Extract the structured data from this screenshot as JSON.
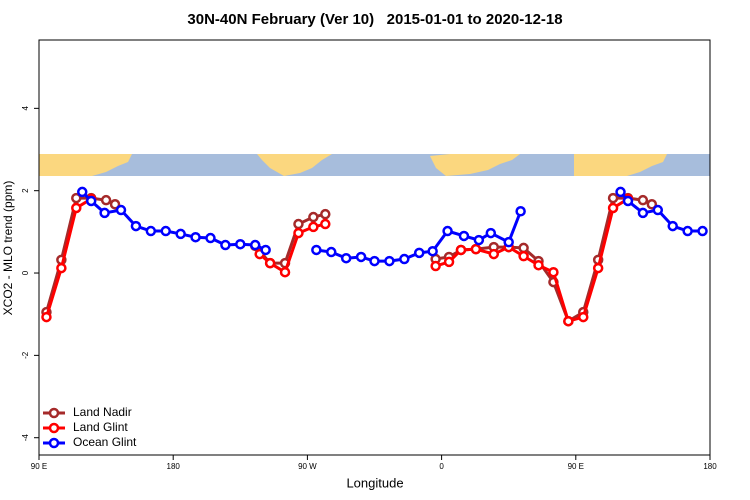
{
  "chart_data": {
    "type": "line",
    "title": "30N-40N February (Ver 10)   2015-01-01 to 2020-12-18",
    "xlabel": "Longitude",
    "ylabel": "XCO2 - MLO trend (ppm)",
    "xlim": [
      90,
      540
    ],
    "ylim": [
      -4.42,
      5.66
    ],
    "xticks": [
      {
        "value": 90,
        "label": "90 E"
      },
      180,
      {
        "value": 270,
        "label": "90 W"
      },
      {
        "value": 360,
        "label": "0"
      },
      {
        "value": 450,
        "label": "90 E"
      },
      {
        "value": 540,
        "label": "180"
      }
    ],
    "yticks": [
      -4,
      -2,
      0,
      2,
      4
    ],
    "legend": "bottom-left",
    "series": [
      {
        "name": "Land Nadir",
        "color": "#a52a2a",
        "x": [
          95,
          105,
          115,
          125,
          135,
          141,
          null,
          235,
          245,
          255,
          264,
          274,
          282,
          null,
          356,
          365,
          373,
          383,
          395,
          405,
          415,
          425,
          435,
          445,
          455,
          465,
          475,
          485,
          495,
          501
        ],
        "values": [
          -0.95,
          0.32,
          1.82,
          1.82,
          1.77,
          1.67,
          null,
          0.66,
          0.24,
          0.24,
          1.19,
          1.36,
          1.43,
          null,
          0.34,
          0.39,
          0.56,
          0.58,
          0.63,
          0.63,
          0.61,
          0.29,
          -0.22,
          -1.17,
          -0.95,
          0.32,
          1.82,
          1.82,
          1.77,
          1.67
        ]
      },
      {
        "name": "Land Glint",
        "color": "#ff0000",
        "x": [
          95,
          105,
          115,
          125,
          null,
          238,
          245,
          255,
          264,
          274,
          282,
          null,
          356,
          365,
          373,
          383,
          395,
          405,
          415,
          425,
          435,
          445,
          455,
          465,
          475,
          485
        ],
        "values": [
          -1.07,
          0.12,
          1.58,
          1.8,
          null,
          0.46,
          0.24,
          0.02,
          0.97,
          1.12,
          1.19,
          null,
          0.17,
          0.27,
          0.56,
          0.58,
          0.46,
          0.63,
          0.41,
          0.19,
          0.02,
          -1.17,
          -1.07,
          0.12,
          1.58,
          1.8
        ]
      },
      {
        "name": "Ocean Glint",
        "color": "#0000ff",
        "x": [
          119,
          125,
          134,
          145,
          155,
          165,
          175,
          185,
          195,
          205,
          215,
          225,
          235,
          242,
          null,
          276,
          286,
          296,
          306,
          315,
          325,
          335,
          345,
          354,
          364,
          375,
          385,
          393,
          405,
          413,
          null,
          480,
          485,
          495,
          505,
          515,
          525,
          535
        ],
        "values": [
          1.97,
          1.75,
          1.46,
          1.53,
          1.14,
          1.02,
          1.02,
          0.95,
          0.87,
          0.85,
          0.68,
          0.7,
          0.68,
          0.56,
          null,
          0.56,
          0.51,
          0.36,
          0.39,
          0.29,
          0.29,
          0.34,
          0.49,
          0.53,
          1.02,
          0.9,
          0.8,
          0.97,
          0.75,
          1.5,
          null,
          1.97,
          1.75,
          1.46,
          1.53,
          1.14,
          1.02,
          1.02
        ]
      }
    ]
  }
}
